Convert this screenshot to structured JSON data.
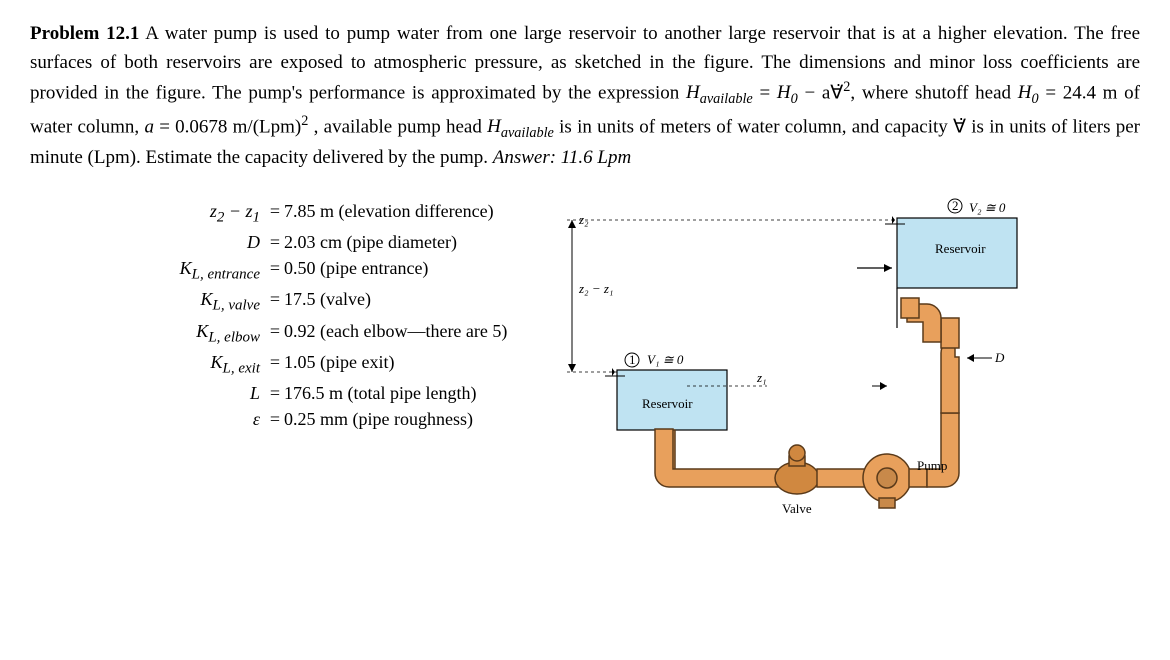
{
  "problem": {
    "title": "Problem 12.1",
    "text_parts": {
      "p1": "A water pump is used to pump water from one large reservoir to another large reservoir that is at a higher elevation. The free surfaces of both reservoirs are exposed to atmospheric pressure, as sketched in the figure. The dimensions and minor loss coefficients are provided in the figure. The pump's performance is approximated by the expression",
      "eq_lhs": "H",
      "eq_lhs_sub": "available",
      "eq_mid1": " =  ",
      "eq_h0": "H",
      "eq_h0_sub": "0",
      "eq_minus": " − a",
      "eq_vdot": "∀̇",
      "eq_sq": "2",
      "p2a": ", where shutoff head ",
      "p2b": " = 24.4 m of water column, ",
      "p2c": "a",
      "p2d": " = 0.0678 m/(Lpm)",
      "p2e": " , available pump head ",
      "p2f": " is in units of meters of water column, and capacity ",
      "p2g": " is in units of liters per minute (Lpm). Estimate the capacity delivered by the pump. ",
      "answer_label": "Answer:  11.6 Lpm"
    }
  },
  "params": [
    {
      "sym": "z<sub>2</sub> − z<sub>1</sub>",
      "val": "7.85 m (elevation difference)"
    },
    {
      "sym": "D",
      "val": "2.03 cm (pipe diameter)"
    },
    {
      "sym": "K<sub>L, entrance</sub>",
      "val": "0.50 (pipe entrance)"
    },
    {
      "sym": "K<sub>L, valve</sub>",
      "val": "17.5 (valve)"
    },
    {
      "sym": "K<sub>L, elbow</sub>",
      "val": "0.92 (each elbow—there are 5)"
    },
    {
      "sym": "K<sub>L, exit</sub>",
      "val": "1.05 (pipe exit)"
    },
    {
      "sym": "L",
      "val": "176.5 m (total pipe length)"
    },
    {
      "sym": "ε",
      "val": "0.25 mm (pipe roughness)"
    }
  ],
  "figure": {
    "colors": {
      "pipe_fill": "#e8a05c",
      "pipe_stroke": "#5a3a1a",
      "water": "#bfe3f2",
      "water_stroke": "#3a7a9a",
      "reservoir_stroke": "#000",
      "pump_fill": "#e8a05c",
      "valve_fill": "#d08840",
      "arrow": "#000"
    },
    "labels": {
      "z2": "z₂",
      "z2z1": "z₂ − z₁",
      "z1": "z₁",
      "v1": "V₁ ≅ 0",
      "v2": "V₂ ≅ 0",
      "res": "Reservoir",
      "valve": "Valve",
      "pump": "Pump",
      "D": "D",
      "circ1": "1",
      "circ2": "2"
    }
  }
}
